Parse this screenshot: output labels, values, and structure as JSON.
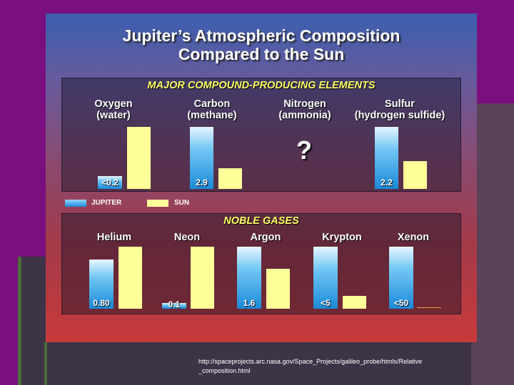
{
  "title_line1": "Jupiter’s Atmospheric Composition",
  "title_line2": "Compared to the Sun",
  "major": {
    "title": "MAJOR COMPOUND-PRODUCING ELEMENTS",
    "elements": [
      {
        "name": "Oxygen",
        "compound": "(water)",
        "jupiter_label": "<0.2",
        "jupiter": 0.2,
        "sun": 1.0
      },
      {
        "name": "Carbon",
        "compound": "(methane)",
        "jupiter_label": "2.9",
        "jupiter": 2.9,
        "sun": 1.0
      },
      {
        "name": "Nitrogen",
        "compound": "(ammonia)",
        "jupiter_label": "?",
        "jupiter": null,
        "sun": null
      },
      {
        "name": "Sulfur",
        "compound": "(hydrogen sulfide)",
        "jupiter_label": "2.2",
        "jupiter": 2.2,
        "sun": 1.0
      }
    ]
  },
  "legend": {
    "jupiter": "JUPITER",
    "sun": "SUN"
  },
  "noble": {
    "title": "NOBLE GASES",
    "elements": [
      {
        "name": "Helium",
        "jupiter_label": "0.80",
        "jupiter": 0.8,
        "sun": 1.0
      },
      {
        "name": "Neon",
        "jupiter_label": "0.1",
        "jupiter": 0.1,
        "sun": 1.0
      },
      {
        "name": "Argon",
        "jupiter_label": "1.6",
        "jupiter": 1.6,
        "sun": 1.0
      },
      {
        "name": "Krypton",
        "jupiter_label": "<5",
        "jupiter": 5,
        "sun": 1.0
      },
      {
        "name": "Xenon",
        "jupiter_label": "<50",
        "jupiter": 50,
        "sun": 1.0
      }
    ]
  },
  "footer": {
    "line1": "http://spaceprojects.arc.nasa.gov/Space_Projects/galileo_probe/htmls/Relative",
    "line2": "_composition.html"
  },
  "colors": {
    "jupiter": "#1a8ad8",
    "sun": "#ffff99",
    "panel_title": "#ffff66"
  },
  "chart_data": [
    {
      "type": "bar",
      "title": "MAJOR COMPOUND-PRODUCING ELEMENTS",
      "categories": [
        "Oxygen (water)",
        "Carbon (methane)",
        "Nitrogen (ammonia)",
        "Sulfur (hydrogen sulfide)"
      ],
      "series": [
        {
          "name": "JUPITER",
          "values": [
            0.2,
            2.9,
            null,
            2.2
          ]
        },
        {
          "name": "SUN",
          "values": [
            1.0,
            1.0,
            null,
            1.0
          ]
        }
      ],
      "legend": "bottom-left"
    },
    {
      "type": "bar",
      "title": "NOBLE GASES",
      "categories": [
        "Helium",
        "Neon",
        "Argon",
        "Krypton",
        "Xenon"
      ],
      "series": [
        {
          "name": "JUPITER",
          "values": [
            0.8,
            0.1,
            1.6,
            5,
            50
          ]
        },
        {
          "name": "SUN",
          "values": [
            1.0,
            1.0,
            1.0,
            1.0,
            1.0
          ]
        }
      ]
    }
  ]
}
